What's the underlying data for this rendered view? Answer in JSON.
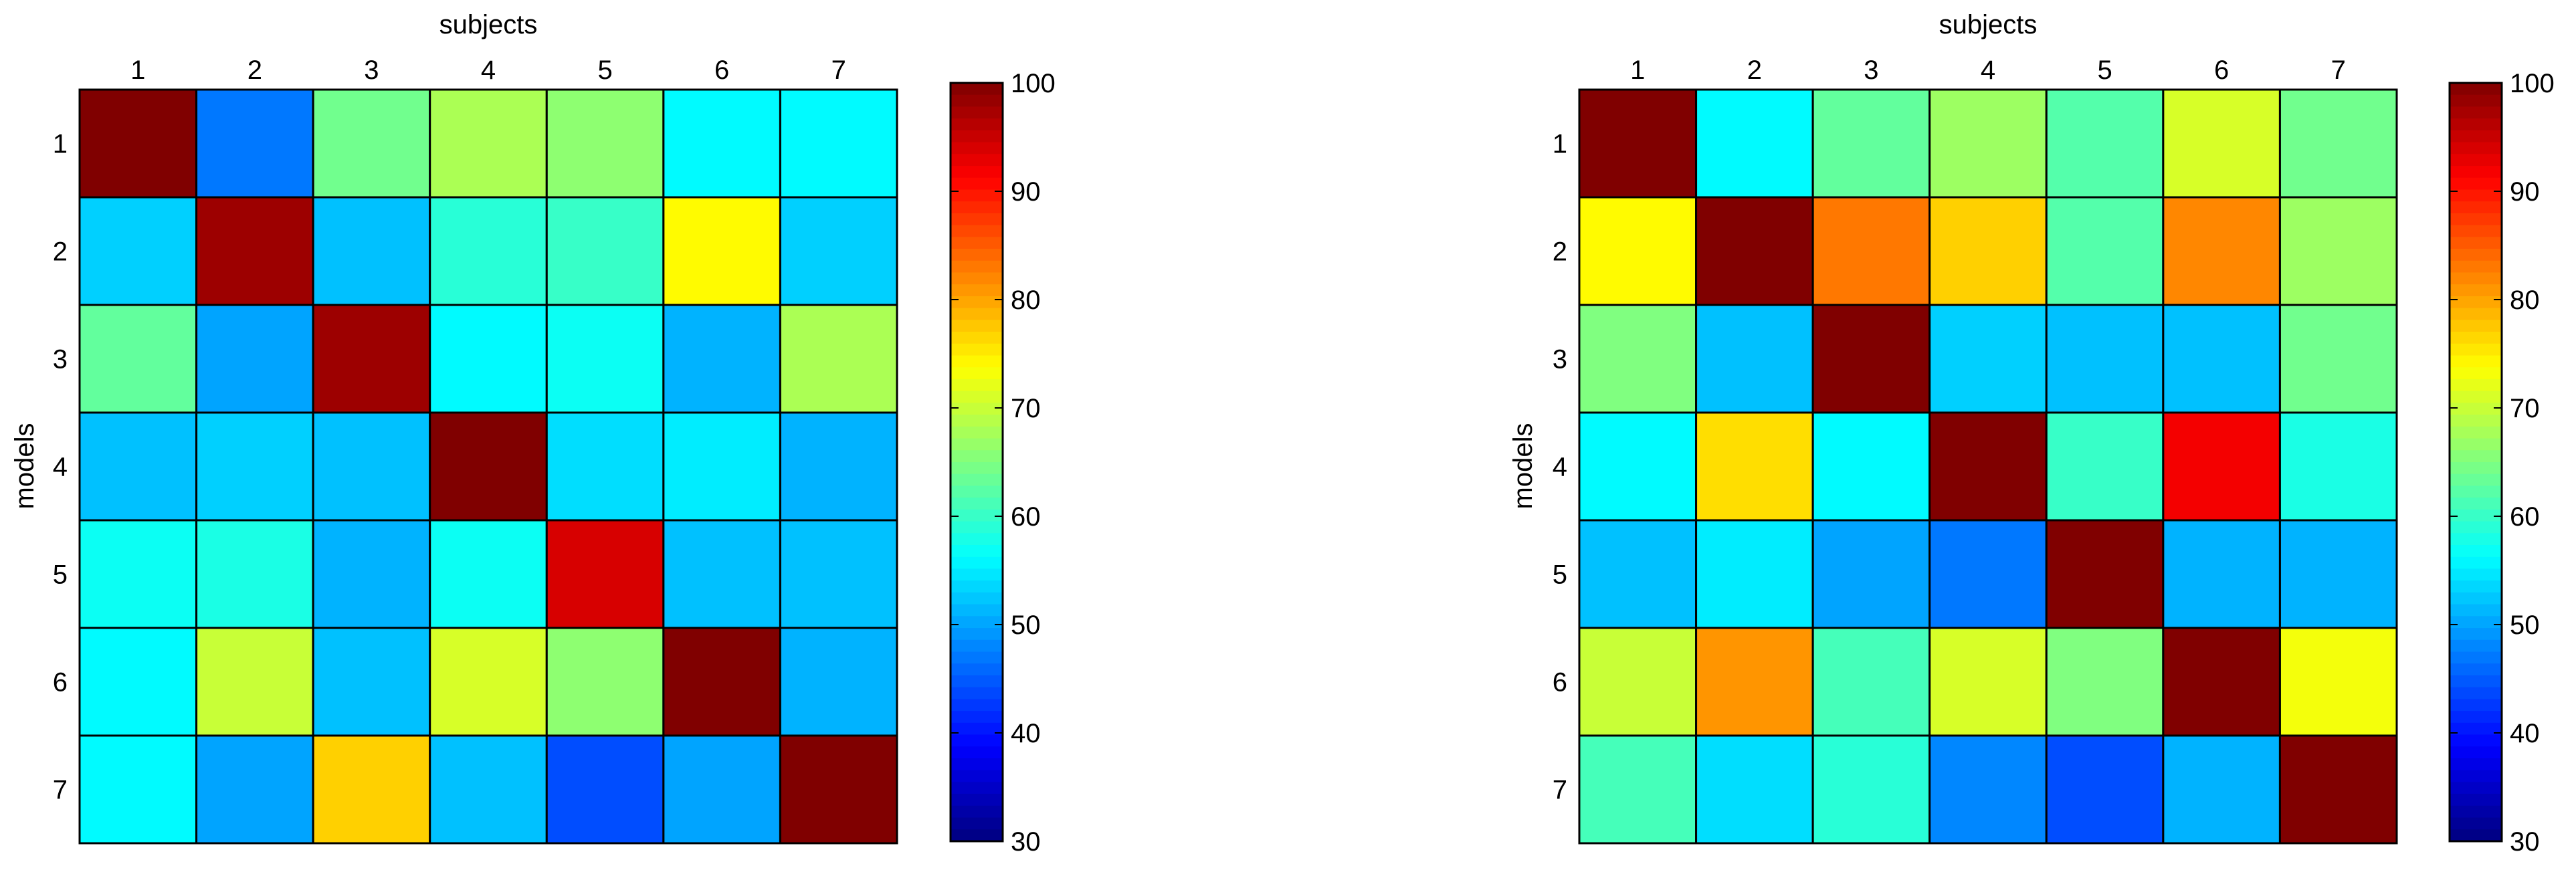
{
  "chart_data": [
    {
      "type": "heatmap",
      "title": "",
      "xlabel": "subjects",
      "ylabel": "models",
      "x": [
        "1",
        "2",
        "3",
        "4",
        "5",
        "6",
        "7"
      ],
      "y": [
        "1",
        "2",
        "3",
        "4",
        "5",
        "6",
        "7"
      ],
      "values": [
        [
          100,
          47,
          64,
          68,
          66,
          56,
          56
        ],
        [
          53,
          98,
          52,
          59,
          60,
          74,
          53
        ],
        [
          63,
          50,
          98,
          56,
          57,
          51,
          68
        ],
        [
          52,
          53,
          52,
          100,
          54,
          55,
          51
        ],
        [
          57,
          58,
          51,
          57,
          94,
          52,
          52
        ],
        [
          56,
          70,
          52,
          71,
          66,
          100,
          51
        ],
        [
          56,
          50,
          77,
          52,
          44,
          50,
          100
        ]
      ],
      "colorbar": {
        "range": [
          30,
          100
        ],
        "ticks": [
          30,
          40,
          50,
          60,
          70,
          80,
          90,
          100
        ],
        "colormap": "jet"
      },
      "grid": false
    },
    {
      "type": "heatmap",
      "title": "",
      "xlabel": "subjects",
      "ylabel": "models",
      "x": [
        "1",
        "2",
        "3",
        "4",
        "5",
        "6",
        "7"
      ],
      "y": [
        "1",
        "2",
        "3",
        "4",
        "5",
        "6",
        "7"
      ],
      "values": [
        [
          100,
          56,
          63,
          67,
          62,
          71,
          64
        ],
        [
          74,
          100,
          83,
          77,
          62,
          82,
          67
        ],
        [
          65,
          52,
          100,
          53,
          52,
          52,
          64
        ],
        [
          56,
          76,
          56,
          100,
          60,
          92,
          58
        ],
        [
          52,
          55,
          50,
          47,
          100,
          51,
          51
        ],
        [
          70,
          81,
          61,
          71,
          65,
          100,
          73
        ],
        [
          61,
          54,
          59,
          48,
          44,
          51,
          100
        ]
      ],
      "colorbar": {
        "range": [
          30,
          100
        ],
        "ticks": [
          30,
          40,
          50,
          60,
          70,
          80,
          90,
          100
        ],
        "colormap": "jet"
      },
      "grid": false
    }
  ]
}
